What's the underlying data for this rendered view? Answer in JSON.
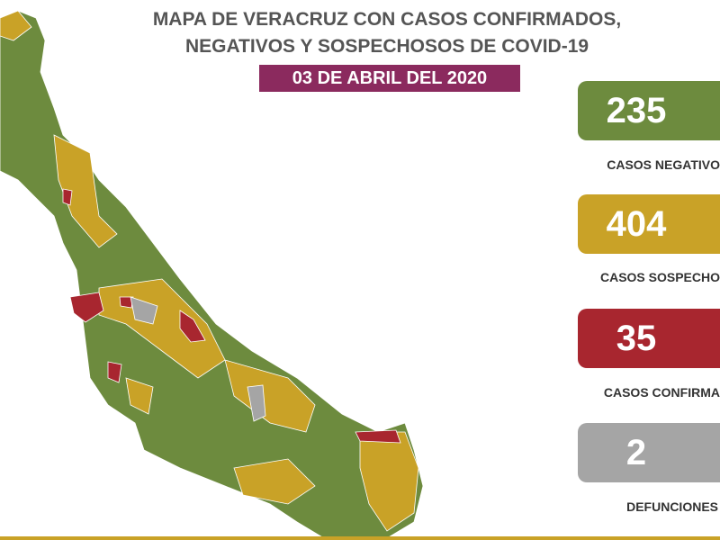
{
  "header": {
    "title_line1": "MAPA DE VERACRUZ CON CASOS CONFIRMADOS,",
    "title_line2": "NEGATIVOS Y SOSPECHOSOS DE COVID-19",
    "date": "03 DE ABRIL DEL 2020"
  },
  "stats": [
    {
      "value": 235,
      "label": "CASOS NEGATIVO"
    },
    {
      "value": 404,
      "label": "CASOS SOSPECHO"
    },
    {
      "value": 35,
      "label": "CASOS CONFIRMA"
    },
    {
      "value": 2,
      "label": "DEFUNCIONES"
    }
  ]
}
